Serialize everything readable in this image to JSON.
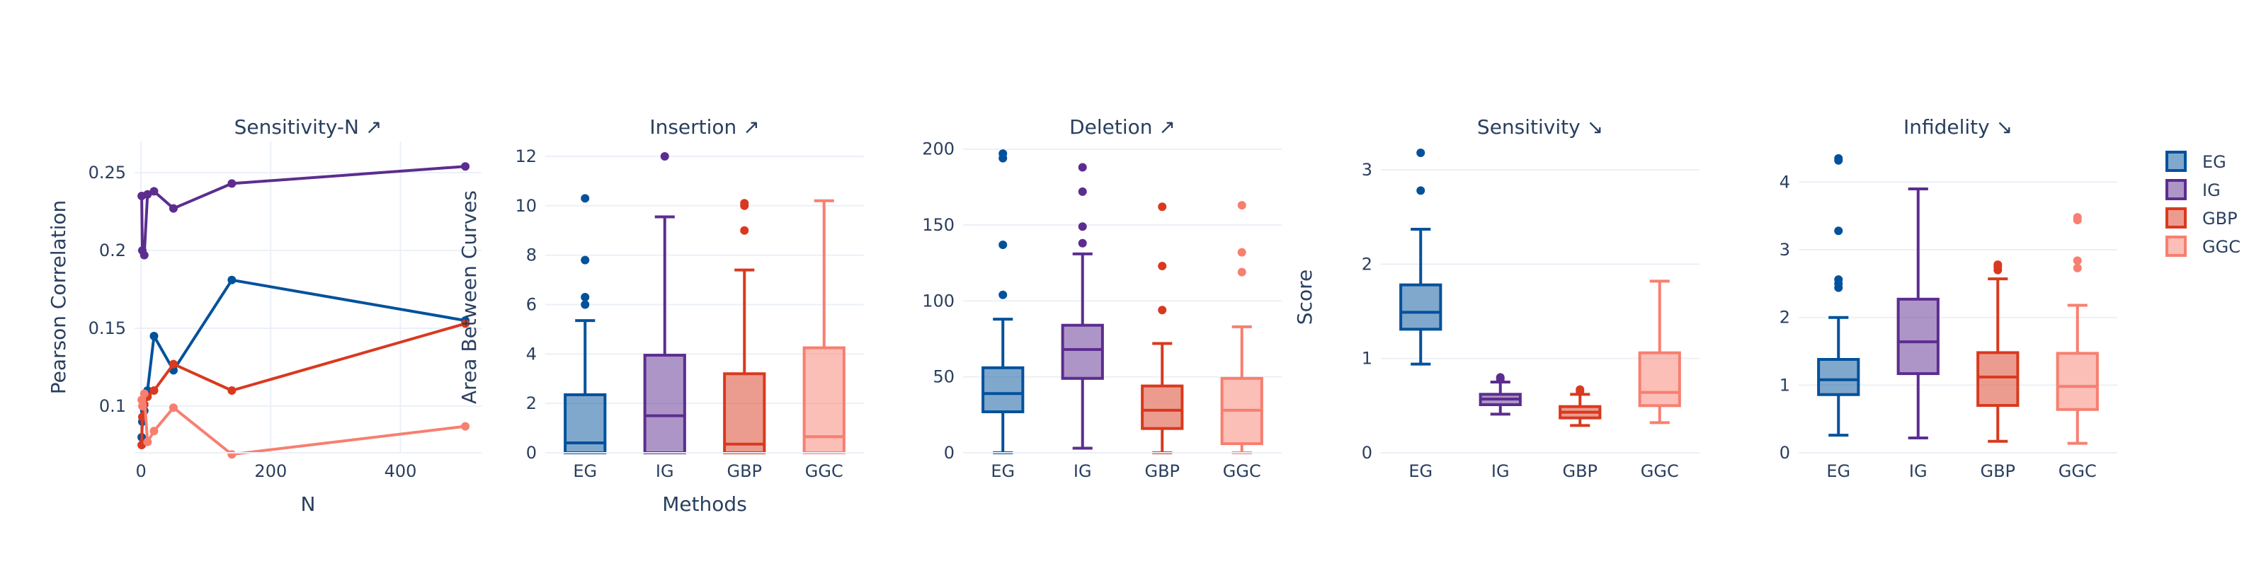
{
  "colors": {
    "EG": "#02519c",
    "IG": "#5c2d8f",
    "GBP": "#d9391f",
    "GGC": "#f77f70"
  },
  "legend": {
    "placement": "right",
    "items": [
      "EG",
      "IG",
      "GBP",
      "GGC"
    ]
  },
  "chart_data": [
    {
      "type": "line",
      "title": "Sensitivity-N ↗",
      "xlabel": "N",
      "ylabel": "Pearson Correlation",
      "xlim": [
        -10,
        525
      ],
      "ylim": [
        0.07,
        0.27
      ],
      "xticks": [
        "0",
        "200",
        "400"
      ],
      "yticks": [
        "0.1",
        "0.15",
        "0.2",
        "0.25"
      ],
      "series": [
        {
          "name": "EG",
          "x": [
            1,
            2,
            5,
            10,
            20,
            50,
            140,
            500
          ],
          "y": [
            0.08,
            0.09,
            0.097,
            0.11,
            0.145,
            0.123,
            0.181,
            0.155
          ]
        },
        {
          "name": "IG",
          "x": [
            1,
            2,
            5,
            10,
            20,
            50,
            140,
            500
          ],
          "y": [
            0.235,
            0.2,
            0.197,
            0.236,
            0.238,
            0.227,
            0.243,
            0.254
          ]
        },
        {
          "name": "GBP",
          "x": [
            1,
            2,
            5,
            10,
            20,
            50,
            140,
            500
          ],
          "y": [
            0.075,
            0.093,
            0.101,
            0.106,
            0.11,
            0.127,
            0.11,
            0.153
          ]
        },
        {
          "name": "GGC",
          "x": [
            1,
            2,
            5,
            10,
            20,
            50,
            140,
            500
          ],
          "y": [
            0.104,
            0.1,
            0.108,
            0.077,
            0.084,
            0.099,
            0.069,
            0.087
          ]
        }
      ]
    },
    {
      "type": "box",
      "title": "Insertion ↗",
      "xlabel": "Methods",
      "ylabel": "Area Between Curves",
      "categories": [
        "EG",
        "IG",
        "GBP",
        "GGC"
      ],
      "ylim": [
        0,
        12.6
      ],
      "yticks": [
        "0",
        "2",
        "4",
        "6",
        "8",
        "10",
        "12"
      ],
      "series": [
        {
          "name": "EG",
          "min": 0,
          "q1": 0,
          "median": 0.4,
          "q3": 2.35,
          "max": 5.35,
          "outliers": [
            6.0,
            6.3,
            7.8,
            10.3
          ]
        },
        {
          "name": "IG",
          "min": 0,
          "q1": 0,
          "median": 1.5,
          "q3": 3.95,
          "max": 9.55,
          "outliers": [
            12.0
          ]
        },
        {
          "name": "GBP",
          "min": 0,
          "q1": 0,
          "median": 0.35,
          "q3": 3.2,
          "max": 7.4,
          "outliers": [
            9.0,
            10.0,
            10.1
          ]
        },
        {
          "name": "GGC",
          "min": 0,
          "q1": 0,
          "median": 0.65,
          "q3": 4.25,
          "max": 10.2,
          "outliers": []
        }
      ]
    },
    {
      "type": "box",
      "title": "Deletion ↗",
      "xlabel": "",
      "ylabel": "",
      "categories": [
        "EG",
        "IG",
        "GBP",
        "GGC"
      ],
      "ylim": [
        0,
        205
      ],
      "yticks": [
        "0",
        "50",
        "100",
        "150",
        "200"
      ],
      "series": [
        {
          "name": "EG",
          "min": 0,
          "q1": 27,
          "median": 39,
          "q3": 56,
          "max": 88,
          "outliers": [
            104,
            137,
            194,
            197
          ]
        },
        {
          "name": "IG",
          "min": 3,
          "q1": 49,
          "median": 68,
          "q3": 84,
          "max": 131,
          "outliers": [
            138,
            149,
            172,
            188
          ]
        },
        {
          "name": "GBP",
          "min": 0,
          "q1": 16,
          "median": 28,
          "q3": 44,
          "max": 72,
          "outliers": [
            94,
            123,
            162
          ]
        },
        {
          "name": "GGC",
          "min": 0,
          "q1": 6,
          "median": 28,
          "q3": 49,
          "max": 83,
          "outliers": [
            119,
            132,
            163
          ]
        }
      ]
    },
    {
      "type": "box",
      "title": "Sensitivity ↘",
      "xlabel": "",
      "ylabel": "Score",
      "categories": [
        "EG",
        "IG",
        "GBP",
        "GGC"
      ],
      "ylim": [
        0,
        3.3
      ],
      "yticks": [
        "0",
        "1",
        "2",
        "3"
      ],
      "series": [
        {
          "name": "EG",
          "min": 0.94,
          "q1": 1.31,
          "median": 1.49,
          "q3": 1.78,
          "max": 2.37,
          "outliers": [
            2.78,
            3.18
          ]
        },
        {
          "name": "IG",
          "min": 0.41,
          "q1": 0.51,
          "median": 0.57,
          "q3": 0.62,
          "max": 0.75,
          "outliers": [
            0.78,
            0.8
          ]
        },
        {
          "name": "GBP",
          "min": 0.29,
          "q1": 0.37,
          "median": 0.43,
          "q3": 0.49,
          "max": 0.62,
          "outliers": [
            0.65,
            0.67
          ]
        },
        {
          "name": "GGC",
          "min": 0.32,
          "q1": 0.5,
          "median": 0.64,
          "q3": 1.06,
          "max": 1.82,
          "outliers": []
        }
      ]
    },
    {
      "type": "box",
      "title": "Infidelity ↘",
      "xlabel": "",
      "ylabel": "",
      "categories": [
        "EG",
        "IG",
        "GBP",
        "GGC"
      ],
      "ylim": [
        0,
        4.6
      ],
      "yticks": [
        "0",
        "1",
        "2",
        "3",
        "4"
      ],
      "series": [
        {
          "name": "EG",
          "min": 0.26,
          "q1": 0.86,
          "median": 1.08,
          "q3": 1.38,
          "max": 2.0,
          "outliers": [
            2.44,
            2.5,
            2.56,
            3.28,
            4.32,
            4.35
          ]
        },
        {
          "name": "IG",
          "min": 0.22,
          "q1": 1.17,
          "median": 1.64,
          "q3": 2.27,
          "max": 3.9,
          "outliers": []
        },
        {
          "name": "GBP",
          "min": 0.17,
          "q1": 0.7,
          "median": 1.12,
          "q3": 1.48,
          "max": 2.57,
          "outliers": [
            2.7,
            2.75,
            2.78
          ]
        },
        {
          "name": "GGC",
          "min": 0.14,
          "q1": 0.64,
          "median": 0.98,
          "q3": 1.47,
          "max": 2.18,
          "outliers": [
            2.73,
            2.84,
            3.44,
            3.48
          ]
        }
      ]
    }
  ]
}
